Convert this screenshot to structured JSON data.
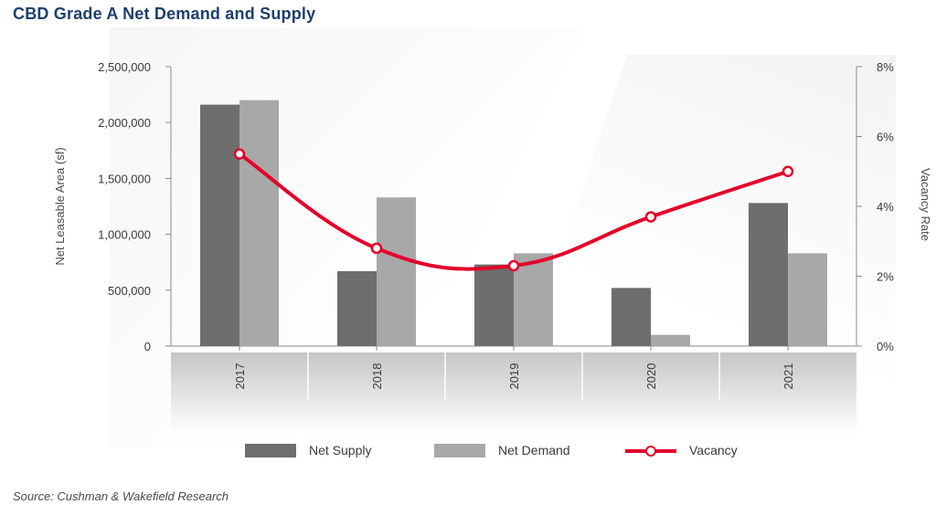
{
  "title": "CBD Grade A Net Demand and Supply",
  "source": "Source: Cushman & Wakefield Research",
  "colors": {
    "net_supply": "#6e6e6e",
    "net_demand": "#a8a8a8",
    "vacancy": "#e4002b",
    "title": "#1d3f6e"
  },
  "legend": {
    "net_supply": "Net Supply",
    "net_demand": "Net Demand",
    "vacancy": "Vacancy"
  },
  "chart_data": {
    "type": "bar",
    "title": "CBD Grade A Net Demand and Supply",
    "categories": [
      "2017",
      "2018",
      "2019",
      "2020",
      "2021"
    ],
    "series": [
      {
        "name": "Net Supply",
        "type": "bar",
        "axis": "left",
        "values": [
          2160000,
          670000,
          730000,
          520000,
          1280000
        ]
      },
      {
        "name": "Net Demand",
        "type": "bar",
        "axis": "left",
        "values": [
          2200000,
          1330000,
          830000,
          100000,
          830000
        ]
      },
      {
        "name": "Vacancy",
        "type": "line",
        "axis": "right",
        "values": [
          5.5,
          2.8,
          2.3,
          3.7,
          5.0
        ]
      }
    ],
    "ylabel": "Net Leasable Area (sf)",
    "y2label": "Vacancy Rate",
    "ylim": [
      0,
      2500000
    ],
    "y2lim": [
      0,
      8
    ],
    "yticks": [
      "0",
      "500,000",
      "1,000,000",
      "1,500,000",
      "2,000,000",
      "2,500,000"
    ],
    "y2ticks": [
      "0%",
      "2%",
      "4%",
      "6%",
      "8%"
    ],
    "legend_position": "bottom",
    "grid": false
  }
}
